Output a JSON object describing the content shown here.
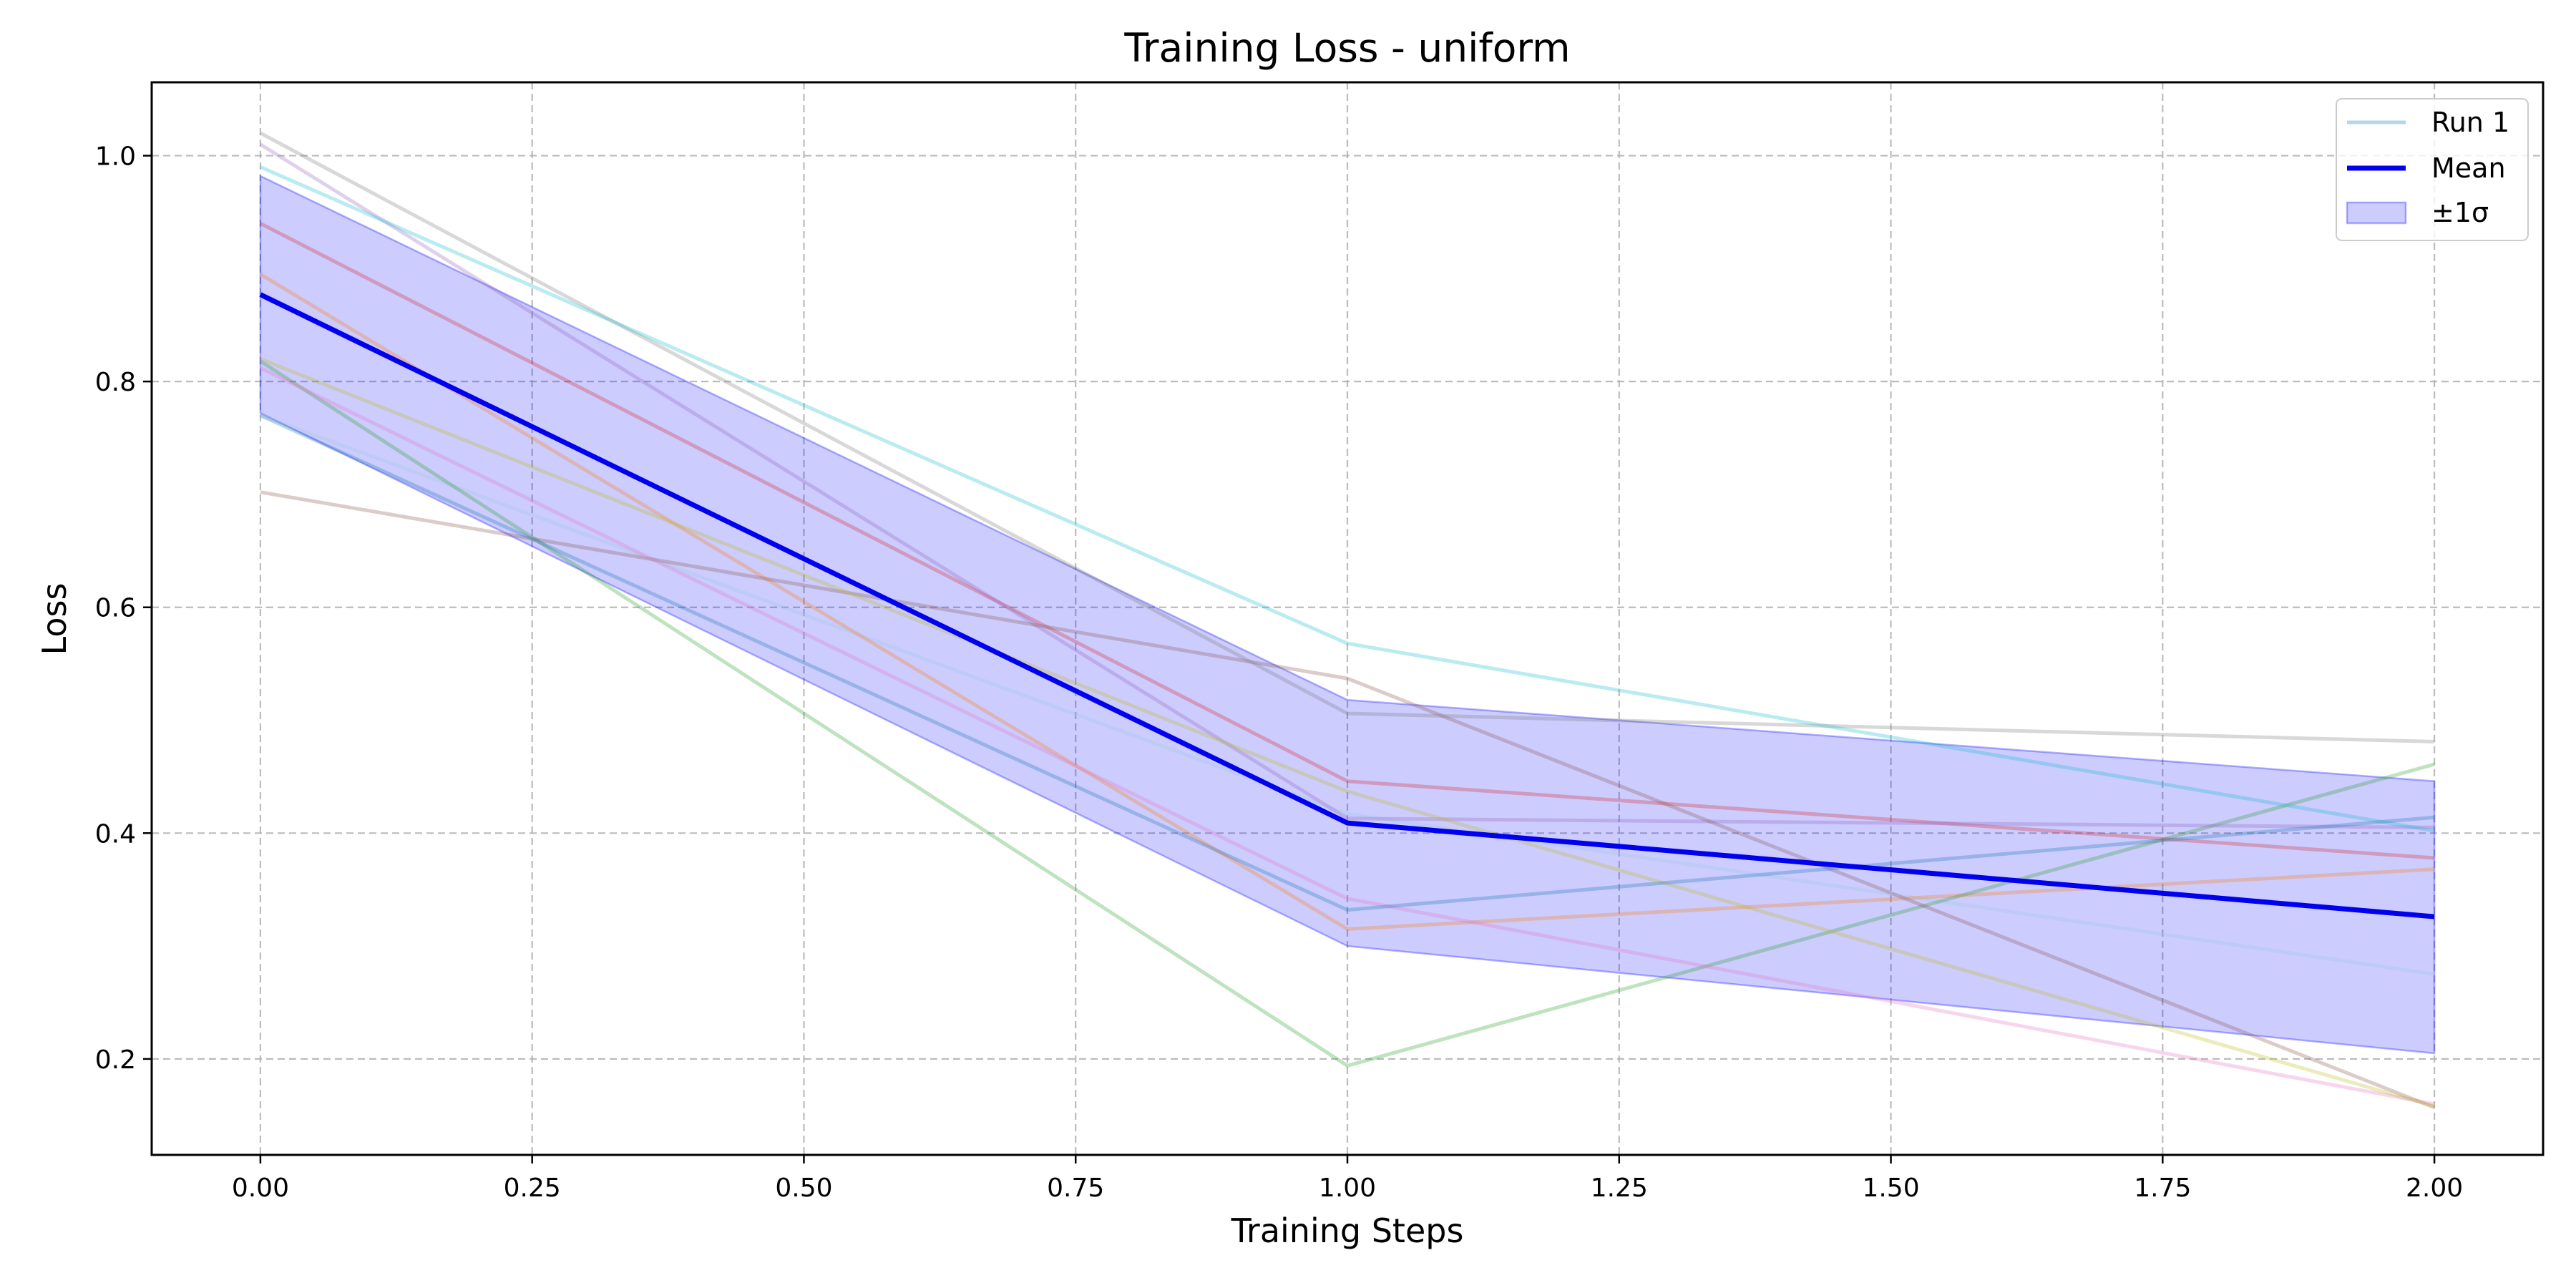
{
  "chart_data": {
    "type": "line",
    "title": "Training Loss - uniform",
    "xlabel": "Training Steps",
    "ylabel": "Loss",
    "x": [
      0,
      1,
      2
    ],
    "xlim": [
      -0.1,
      2.1
    ],
    "ylim": [
      0.115,
      1.065
    ],
    "xticks": [
      "0.00",
      "0.25",
      "0.50",
      "0.75",
      "1.00",
      "1.25",
      "1.50",
      "1.75",
      "2.00"
    ],
    "xtick_values": [
      0,
      0.25,
      0.5,
      0.75,
      1.0,
      1.25,
      1.5,
      1.75,
      2.0
    ],
    "yticks": [
      "0.2",
      "0.4",
      "0.6",
      "0.8",
      "1.0"
    ],
    "ytick_values": [
      0.2,
      0.4,
      0.6,
      0.8,
      1.0
    ],
    "grid": true,
    "legend_position": "top-right",
    "runs": [
      {
        "name": "Run 1",
        "color": "#9ecae1",
        "values": [
          0.77,
          0.417,
          0.275
        ]
      },
      {
        "color": "#ff7f0e",
        "values": [
          0.895,
          0.315,
          0.368
        ]
      },
      {
        "color": "#2ca02c",
        "values": [
          0.818,
          0.194,
          0.461
        ]
      },
      {
        "color": "#d62728",
        "values": [
          0.94,
          0.446,
          0.378
        ]
      },
      {
        "color": "#9467bd",
        "values": [
          1.01,
          0.413,
          0.405
        ]
      },
      {
        "color": "#8c564b",
        "values": [
          0.702,
          0.537,
          0.157
        ]
      },
      {
        "color": "#e377c2",
        "values": [
          0.812,
          0.342,
          0.16
        ]
      },
      {
        "color": "#7f7f7f",
        "values": [
          1.02,
          0.506,
          0.481
        ]
      },
      {
        "color": "#bcbd22",
        "values": [
          0.82,
          0.437,
          0.158
        ]
      },
      {
        "color": "#17becf",
        "values": [
          0.99,
          0.568,
          0.402
        ]
      },
      {
        "color": "#1f77b4",
        "values": [
          0.77,
          0.332,
          0.414
        ]
      }
    ],
    "mean": {
      "name": "Mean",
      "color": "#0000ee",
      "values": [
        0.877,
        0.409,
        0.326
      ]
    },
    "band": {
      "name": "±1σ",
      "color": "#0000ff",
      "upper": [
        0.982,
        0.518,
        0.446
      ],
      "lower": [
        0.772,
        0.3,
        0.205
      ]
    }
  }
}
